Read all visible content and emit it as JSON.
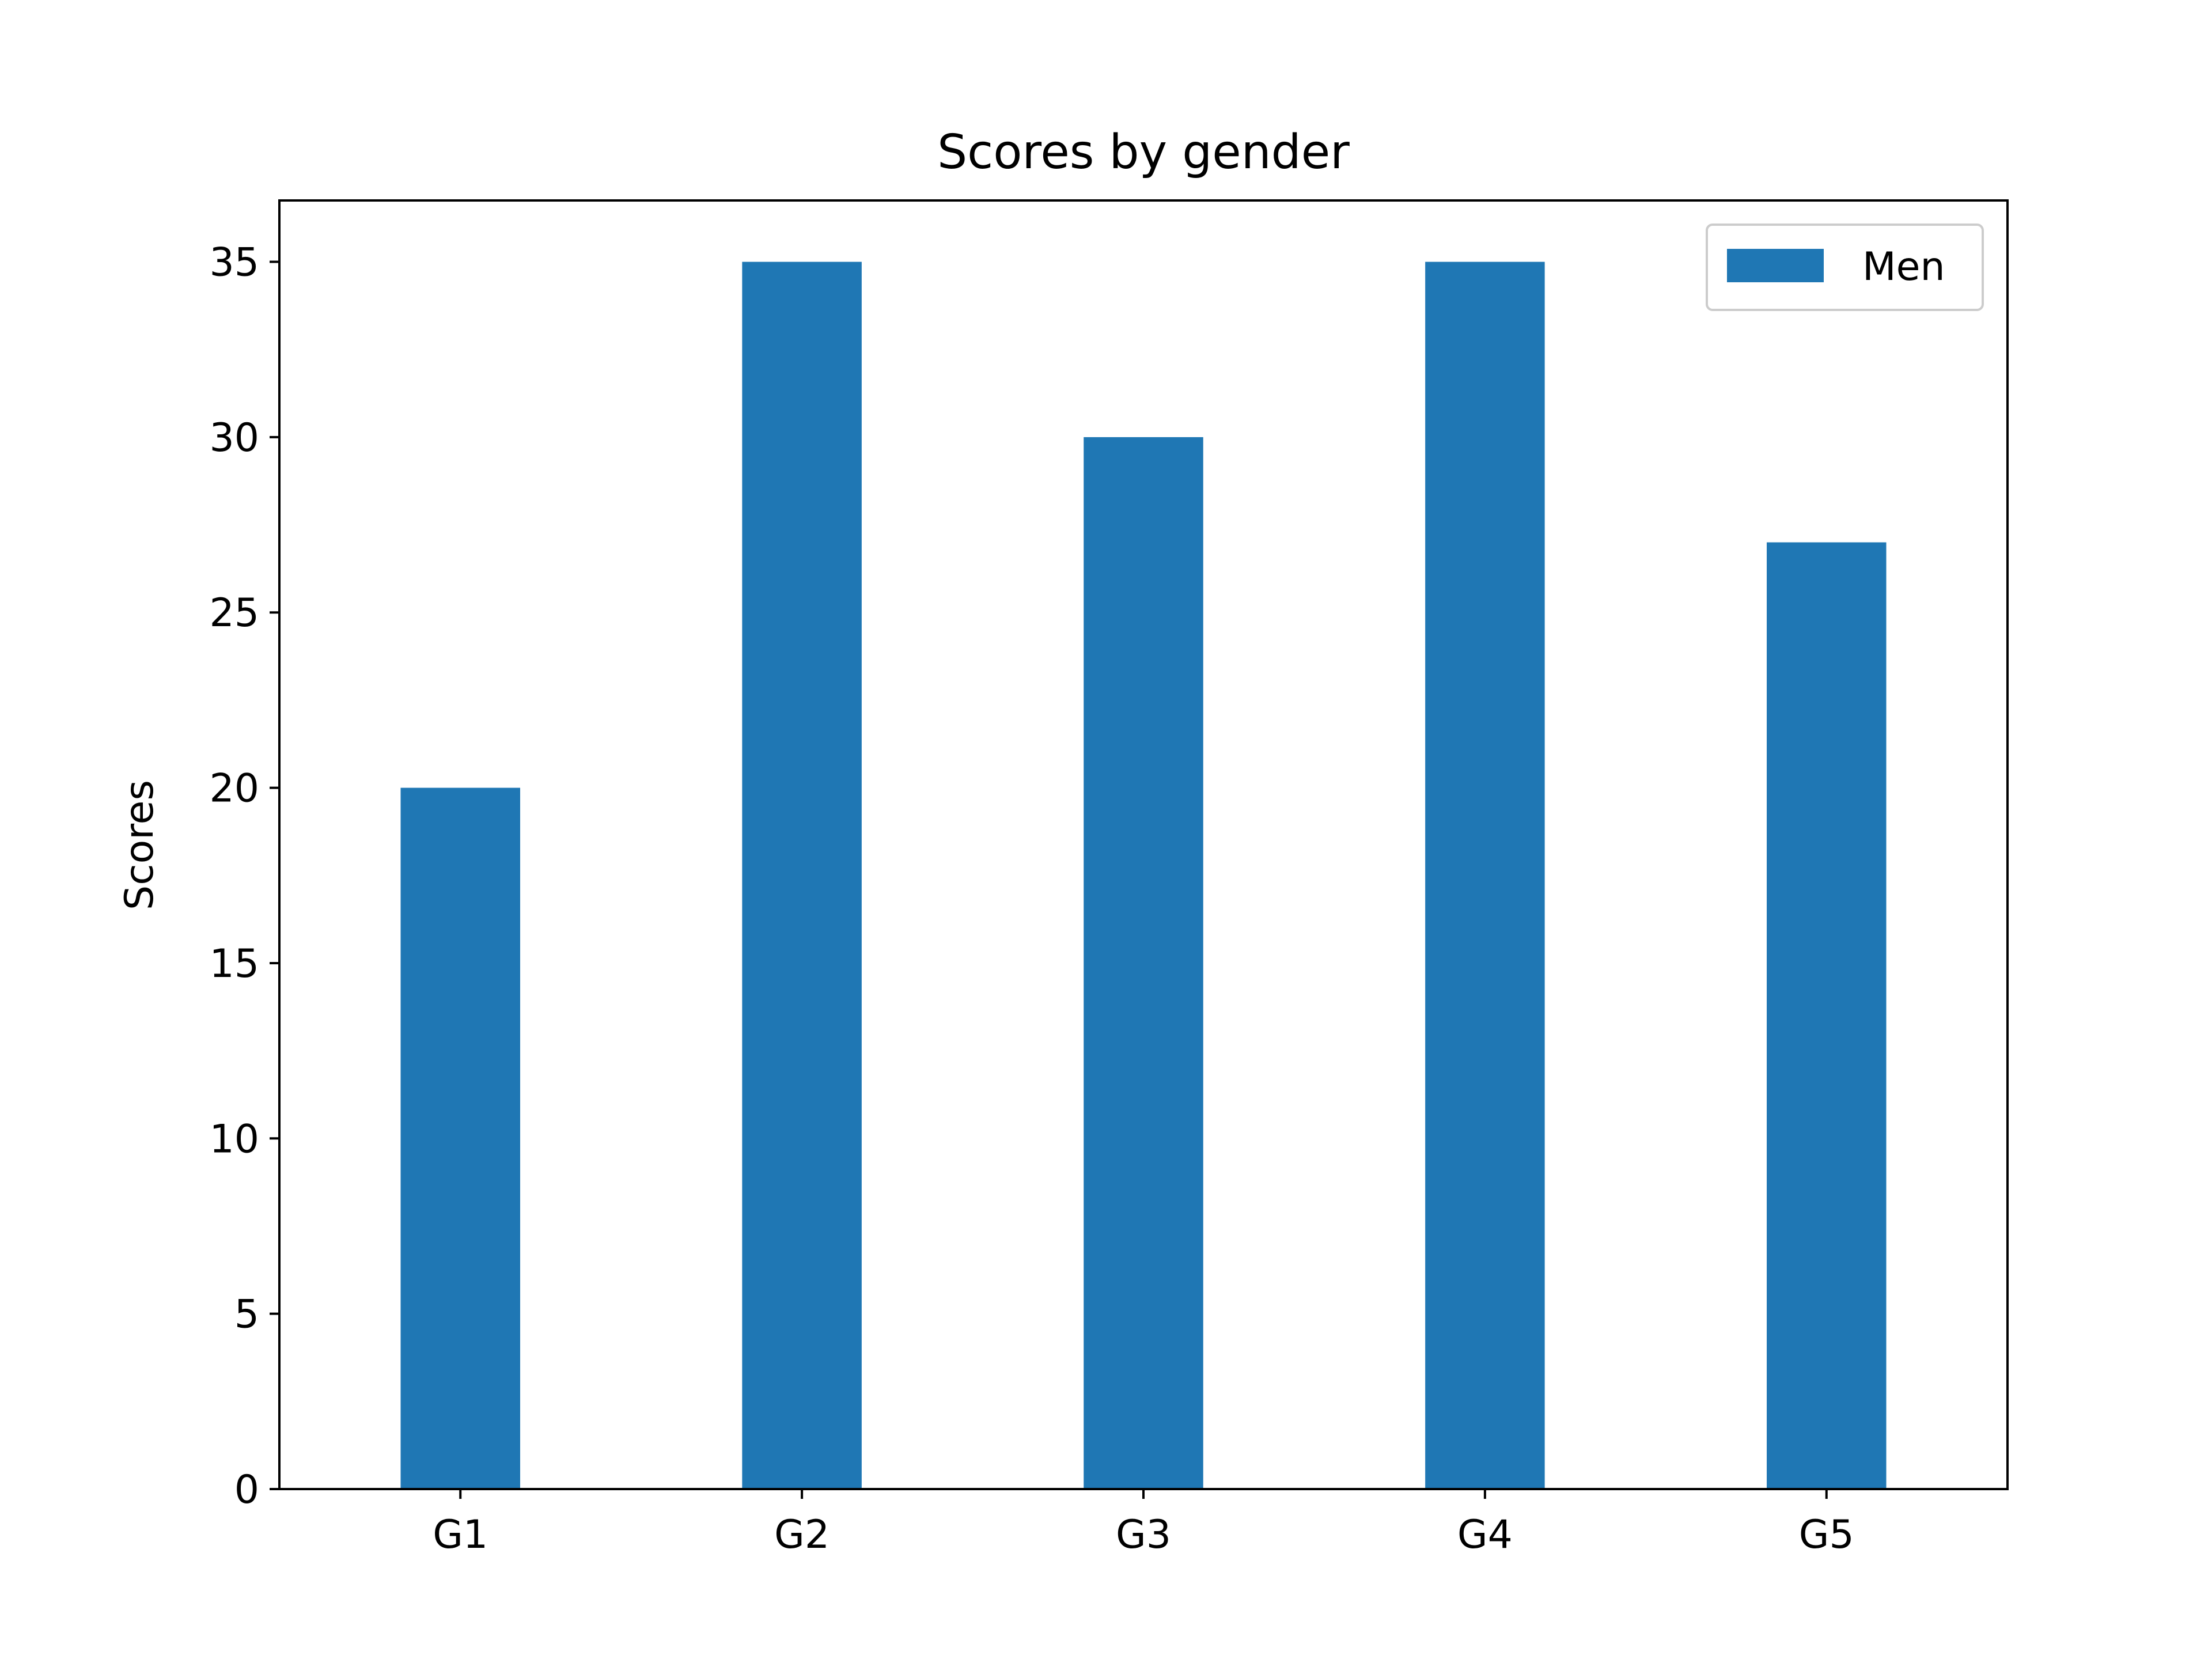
{
  "chart_data": {
    "type": "bar",
    "title": "Scores by gender",
    "xlabel": "",
    "ylabel": "Scores",
    "categories": [
      "G1",
      "G2",
      "G3",
      "G4",
      "G5"
    ],
    "series": [
      {
        "name": "Men",
        "values": [
          20,
          35,
          30,
          35,
          27
        ]
      }
    ],
    "ylim": [
      0,
      36.75
    ],
    "yticks": [
      0,
      5,
      10,
      15,
      20,
      25,
      30,
      35
    ],
    "grid": false,
    "legend_position": "top-right"
  },
  "colors": {
    "bar": "#1f77b4",
    "axis": "#000000",
    "background": "#ffffff",
    "legend_border": "#cccccc"
  }
}
